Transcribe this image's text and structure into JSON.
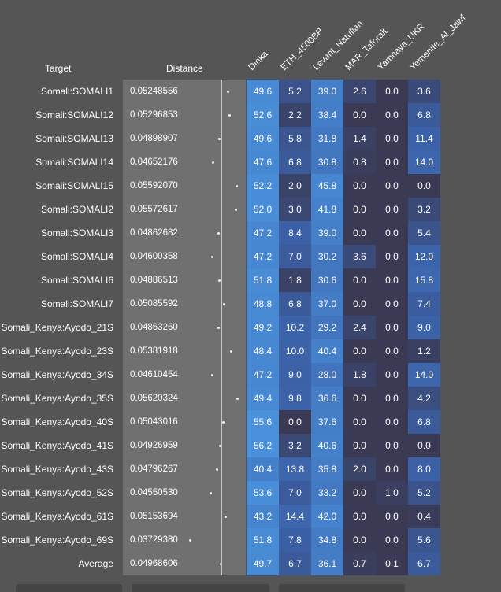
{
  "headers": {
    "target": "Target",
    "distance": "Distance",
    "columns": [
      "Dinka",
      "ETH_4500BP",
      "Levant_Natufian",
      "MAR_Taforalt",
      "Yamnaya_UKR",
      "Yemenite_Al_Jawf"
    ]
  },
  "heat_scale": {
    "low": "#3a3a55",
    "mid": "#3b60a6",
    "high": "#4a90db"
  },
  "rows": [
    {
      "target": "Somali:SOMALI1",
      "distance": "0.05248556",
      "values": [
        "49.6",
        "5.2",
        "39.0",
        "2.6",
        "0.0",
        "3.6"
      ]
    },
    {
      "target": "Somali:SOMALI12",
      "distance": "0.05296853",
      "values": [
        "52.6",
        "2.2",
        "38.4",
        "0.0",
        "0.0",
        "6.8"
      ]
    },
    {
      "target": "Somali:SOMALI13",
      "distance": "0.04898907",
      "values": [
        "49.6",
        "5.8",
        "31.8",
        "1.4",
        "0.0",
        "11.4"
      ]
    },
    {
      "target": "Somali:SOMALI14",
      "distance": "0.04652176",
      "values": [
        "47.6",
        "6.8",
        "30.8",
        "0.8",
        "0.0",
        "14.0"
      ]
    },
    {
      "target": "Somali:SOMALI15",
      "distance": "0.05592070",
      "values": [
        "52.2",
        "2.0",
        "45.8",
        "0.0",
        "0.0",
        "0.0"
      ]
    },
    {
      "target": "Somali:SOMALI2",
      "distance": "0.05572617",
      "values": [
        "52.0",
        "3.0",
        "41.8",
        "0.0",
        "0.0",
        "3.2"
      ]
    },
    {
      "target": "Somali:SOMALI3",
      "distance": "0.04862682",
      "values": [
        "47.2",
        "8.4",
        "39.0",
        "0.0",
        "0.0",
        "5.4"
      ]
    },
    {
      "target": "Somali:SOMALI4",
      "distance": "0.04600358",
      "values": [
        "47.2",
        "7.0",
        "30.2",
        "3.6",
        "0.0",
        "12.0"
      ]
    },
    {
      "target": "Somali:SOMALI6",
      "distance": "0.04886513",
      "values": [
        "51.8",
        "1.8",
        "30.6",
        "0.0",
        "0.0",
        "15.8"
      ]
    },
    {
      "target": "Somali:SOMALI7",
      "distance": "0.05085592",
      "values": [
        "48.8",
        "6.8",
        "37.0",
        "0.0",
        "0.0",
        "7.4"
      ]
    },
    {
      "target": "Somali_Kenya:Ayodo_21S",
      "distance": "0.04863260",
      "values": [
        "49.2",
        "10.2",
        "29.2",
        "2.4",
        "0.0",
        "9.0"
      ]
    },
    {
      "target": "Somali_Kenya:Ayodo_23S",
      "distance": "0.05381918",
      "values": [
        "48.4",
        "10.0",
        "40.4",
        "0.0",
        "0.0",
        "1.2"
      ]
    },
    {
      "target": "Somali_Kenya:Ayodo_34S",
      "distance": "0.04610454",
      "values": [
        "47.2",
        "9.0",
        "28.0",
        "1.8",
        "0.0",
        "14.0"
      ]
    },
    {
      "target": "Somali_Kenya:Ayodo_35S",
      "distance": "0.05620324",
      "values": [
        "49.4",
        "9.8",
        "36.6",
        "0.0",
        "0.0",
        "4.2"
      ]
    },
    {
      "target": "Somali_Kenya:Ayodo_40S",
      "distance": "0.05043016",
      "values": [
        "55.6",
        "0.0",
        "37.6",
        "0.0",
        "0.0",
        "6.8"
      ]
    },
    {
      "target": "Somali_Kenya:Ayodo_41S",
      "distance": "0.04926959",
      "values": [
        "56.2",
        "3.2",
        "40.6",
        "0.0",
        "0.0",
        "0.0"
      ]
    },
    {
      "target": "Somali_Kenya:Ayodo_43S",
      "distance": "0.04796267",
      "values": [
        "40.4",
        "13.8",
        "35.8",
        "2.0",
        "0.0",
        "8.0"
      ]
    },
    {
      "target": "Somali_Kenya:Ayodo_52S",
      "distance": "0.04550530",
      "values": [
        "53.6",
        "7.0",
        "33.2",
        "0.0",
        "1.0",
        "5.2"
      ]
    },
    {
      "target": "Somali_Kenya:Ayodo_61S",
      "distance": "0.05153694",
      "values": [
        "43.2",
        "14.4",
        "42.0",
        "0.0",
        "0.0",
        "0.4"
      ]
    },
    {
      "target": "Somali_Kenya:Ayodo_69S",
      "distance": "0.03729380",
      "values": [
        "51.8",
        "7.8",
        "34.8",
        "0.0",
        "0.0",
        "5.6"
      ]
    },
    {
      "target": "Average",
      "distance": "0.04968606",
      "values": [
        "49.7",
        "6.7",
        "36.1",
        "0.7",
        "0.1",
        "6.7"
      ]
    }
  ]
}
